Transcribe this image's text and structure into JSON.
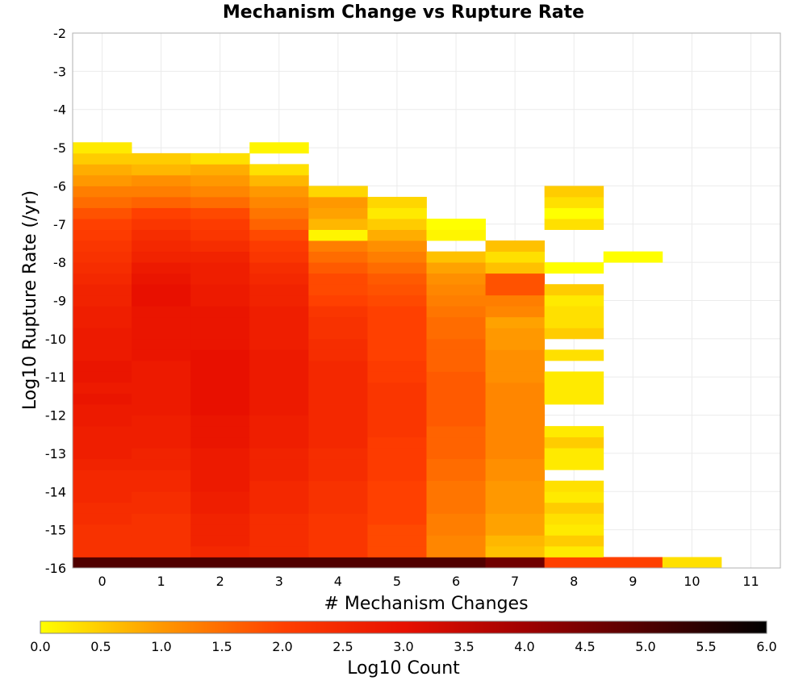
{
  "chart_data": {
    "type": "heatmap",
    "title": "Mechanism Change vs Rupture Rate",
    "xlabel": "# Mechanism Changes",
    "ylabel": "Log10 Rupture Rate (/yr)",
    "xlim": [
      -0.5,
      11.5
    ],
    "ylim": [
      -16,
      -2
    ],
    "x_ticks": [
      "0",
      "1",
      "2",
      "3",
      "4",
      "5",
      "6",
      "7",
      "8",
      "9",
      "10",
      "11"
    ],
    "y_ticks": [
      "-2",
      "-3",
      "-4",
      "-5",
      "-6",
      "-7",
      "-8",
      "-9",
      "-10",
      "-11",
      "-12",
      "-13",
      "-14",
      "-15",
      "-16"
    ],
    "colorbar": {
      "label": "Log10 Count",
      "range": [
        0.0,
        6.0
      ],
      "ticks": [
        "0.0",
        "0.5",
        "1.0",
        "1.5",
        "2.0",
        "2.5",
        "3.0",
        "3.5",
        "4.0",
        "4.5",
        "5.0",
        "5.5",
        "6.0"
      ],
      "colors": [
        "#ffff00",
        "#ff9800",
        "#ff4000",
        "#e81000",
        "#a00000",
        "#500000",
        "#000000"
      ]
    },
    "bin_size_y": 0.2857,
    "grid": true,
    "columns": [
      {
        "x": 0,
        "y_start": -16.0,
        "values": [
          5.0,
          2.3,
          2.3,
          2.3,
          2.4,
          2.4,
          2.5,
          2.5,
          2.5,
          2.6,
          2.7,
          2.7,
          2.7,
          2.8,
          2.8,
          2.9,
          2.8,
          2.9,
          2.9,
          2.8,
          2.8,
          2.8,
          2.7,
          2.7,
          2.6,
          2.6,
          2.5,
          2.4,
          2.3,
          2.2,
          2.1,
          2.0,
          1.8,
          1.5,
          1.3,
          1.0,
          0.8,
          0.5,
          0.2
        ]
      },
      {
        "x": 1,
        "y_start": -16.0,
        "values": [
          5.0,
          2.3,
          2.3,
          2.3,
          2.3,
          2.4,
          2.4,
          2.5,
          2.5,
          2.6,
          2.6,
          2.7,
          2.7,
          2.7,
          2.8,
          2.8,
          2.8,
          2.8,
          2.8,
          2.9,
          2.9,
          2.9,
          2.9,
          2.9,
          3.0,
          3.0,
          2.9,
          2.8,
          2.6,
          2.5,
          2.4,
          2.2,
          2.0,
          1.6,
          1.3,
          1.1,
          0.7,
          0.5
        ]
      },
      {
        "x": 2,
        "y_start": -16.0,
        "values": [
          5.0,
          2.5,
          2.6,
          2.6,
          2.6,
          2.7,
          2.7,
          2.8,
          2.8,
          2.8,
          2.8,
          2.9,
          2.9,
          2.9,
          3.0,
          3.0,
          3.0,
          3.0,
          3.0,
          3.0,
          2.9,
          2.9,
          2.9,
          2.9,
          2.8,
          2.8,
          2.7,
          2.7,
          2.6,
          2.4,
          2.2,
          2.1,
          1.9,
          1.5,
          1.2,
          1.0,
          0.8,
          0.3
        ]
      },
      {
        "x": 3,
        "y_start": -16.0,
        "values": [
          5.0,
          2.4,
          2.4,
          2.4,
          2.4,
          2.5,
          2.5,
          2.5,
          2.6,
          2.6,
          2.6,
          2.7,
          2.7,
          2.7,
          2.8,
          2.8,
          2.8,
          2.8,
          2.8,
          2.8,
          2.7,
          2.7,
          2.7,
          2.7,
          2.6,
          2.6,
          2.5,
          2.4,
          2.2,
          2.1,
          1.9,
          1.6,
          1.4,
          1.2,
          1.0,
          0.7,
          0.3,
          null,
          0.1
        ]
      },
      {
        "x": 4,
        "y_start": -16.0,
        "values": [
          5.0,
          2.2,
          2.2,
          2.2,
          2.2,
          2.3,
          2.3,
          2.3,
          2.4,
          2.4,
          2.4,
          2.5,
          2.5,
          2.5,
          2.5,
          2.5,
          2.5,
          2.5,
          2.5,
          2.4,
          2.4,
          2.3,
          2.3,
          2.2,
          2.0,
          1.9,
          1.9,
          1.7,
          1.5,
          1.3,
          0.1,
          0.7,
          0.9,
          1.0,
          0.4
        ]
      },
      {
        "x": 5,
        "y_start": -16.0,
        "values": [
          5.0,
          1.9,
          1.9,
          1.9,
          2.0,
          2.0,
          2.0,
          2.0,
          2.1,
          2.1,
          2.1,
          2.1,
          2.2,
          2.2,
          2.2,
          2.2,
          2.2,
          2.1,
          2.1,
          2.0,
          2.0,
          2.0,
          2.0,
          2.0,
          1.9,
          1.8,
          1.7,
          1.5,
          1.3,
          1.1,
          0.8,
          0.5,
          0.2,
          0.4
        ]
      },
      {
        "x": 6,
        "y_start": -16.0,
        "values": [
          5.0,
          1.2,
          1.2,
          1.3,
          1.3,
          1.4,
          1.4,
          1.4,
          1.5,
          1.5,
          1.6,
          1.6,
          1.6,
          1.7,
          1.7,
          1.7,
          1.7,
          1.7,
          1.6,
          1.6,
          1.6,
          1.5,
          1.5,
          1.4,
          1.3,
          1.2,
          1.1,
          0.9,
          0.6,
          null,
          0.1,
          0.0
        ]
      },
      {
        "x": 7,
        "y_start": -16.0,
        "values": [
          4.6,
          0.6,
          0.7,
          0.9,
          0.9,
          1.0,
          1.0,
          1.0,
          1.1,
          1.1,
          1.2,
          1.2,
          1.2,
          1.2,
          1.2,
          1.2,
          1.2,
          1.1,
          1.1,
          1.1,
          1.0,
          1.0,
          0.9,
          1.2,
          1.3,
          1.8,
          1.8,
          0.6,
          0.3,
          0.6
        ]
      },
      {
        "x": 8,
        "y_start": -16.0,
        "values": [
          2.0,
          0.2,
          0.5,
          0.2,
          0.3,
          0.5,
          0.2,
          0.3,
          null,
          0.2,
          0.2,
          0.5,
          0.2,
          null,
          null,
          0.2,
          0.2,
          0.2,
          null,
          0.3,
          null,
          0.5,
          0.3,
          0.3,
          0.2,
          0.5,
          null,
          0.0,
          null,
          null,
          null,
          0.3,
          0.0,
          0.3,
          0.5
        ]
      },
      {
        "x": 9,
        "y_start": -16.0,
        "values": [
          2.0,
          null,
          null,
          null,
          null,
          null,
          null,
          null,
          null,
          null,
          null,
          null,
          null,
          null,
          null,
          null,
          null,
          null,
          null,
          null,
          null,
          null,
          null,
          null,
          null,
          null,
          null,
          null,
          0.0
        ]
      },
      {
        "x": 10,
        "y_start": -16.0,
        "values": [
          0.3
        ]
      }
    ]
  }
}
